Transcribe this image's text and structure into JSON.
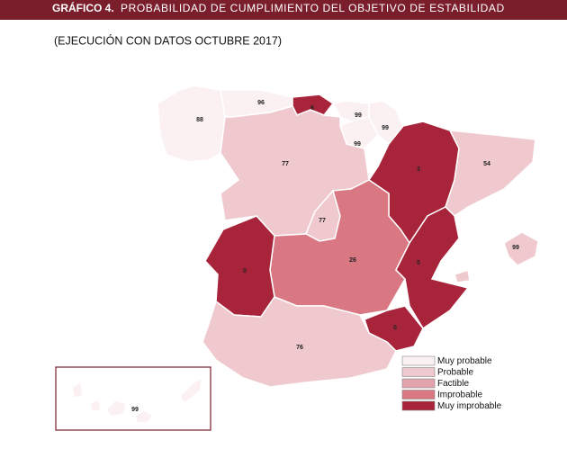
{
  "header": {
    "number": "GRÁFICO 4.",
    "title": "PROBABILIDAD DE CUMPLIMIENTO DEL OBJETIVO DE ESTABILIDAD",
    "subtitle": "(EJECUCIÓN CON DATOS OCTUBRE 2017)"
  },
  "regions": [
    {
      "value": 88,
      "color": "#fbf1f2"
    },
    {
      "value": 96,
      "color": "#fbf1f2"
    },
    {
      "value": 6,
      "color": "#a8243b"
    },
    {
      "value": 99,
      "color": "#fbf1f2"
    },
    {
      "value": 99,
      "color": "#fbf1f2"
    },
    {
      "value": 99,
      "color": "#fbf1f2"
    },
    {
      "value": 77,
      "color": "#efc9ce"
    },
    {
      "value": 3,
      "color": "#a8243b"
    },
    {
      "value": 54,
      "color": "#efc9ce"
    },
    {
      "value": 77,
      "color": "#efc9ce"
    },
    {
      "value": 26,
      "color": "#d97783"
    },
    {
      "value": 5,
      "color": "#a8243b"
    },
    {
      "value": 0,
      "color": "#a8243b"
    },
    {
      "value": 76,
      "color": "#efc9ce"
    },
    {
      "value": 0,
      "color": "#a8243b"
    },
    {
      "value": 99,
      "color": "#efc9ce"
    },
    {
      "value": 99,
      "color": "#fbf1f2"
    }
  ],
  "legend": [
    {
      "label": "Muy probable",
      "color": "#fbf1f2"
    },
    {
      "label": "Probable",
      "color": "#efc9ce"
    },
    {
      "label": "Factible",
      "color": "#e3a3ac"
    },
    {
      "label": "Improbable",
      "color": "#d97783"
    },
    {
      "label": "Muy improbable",
      "color": "#a8243b"
    }
  ]
}
